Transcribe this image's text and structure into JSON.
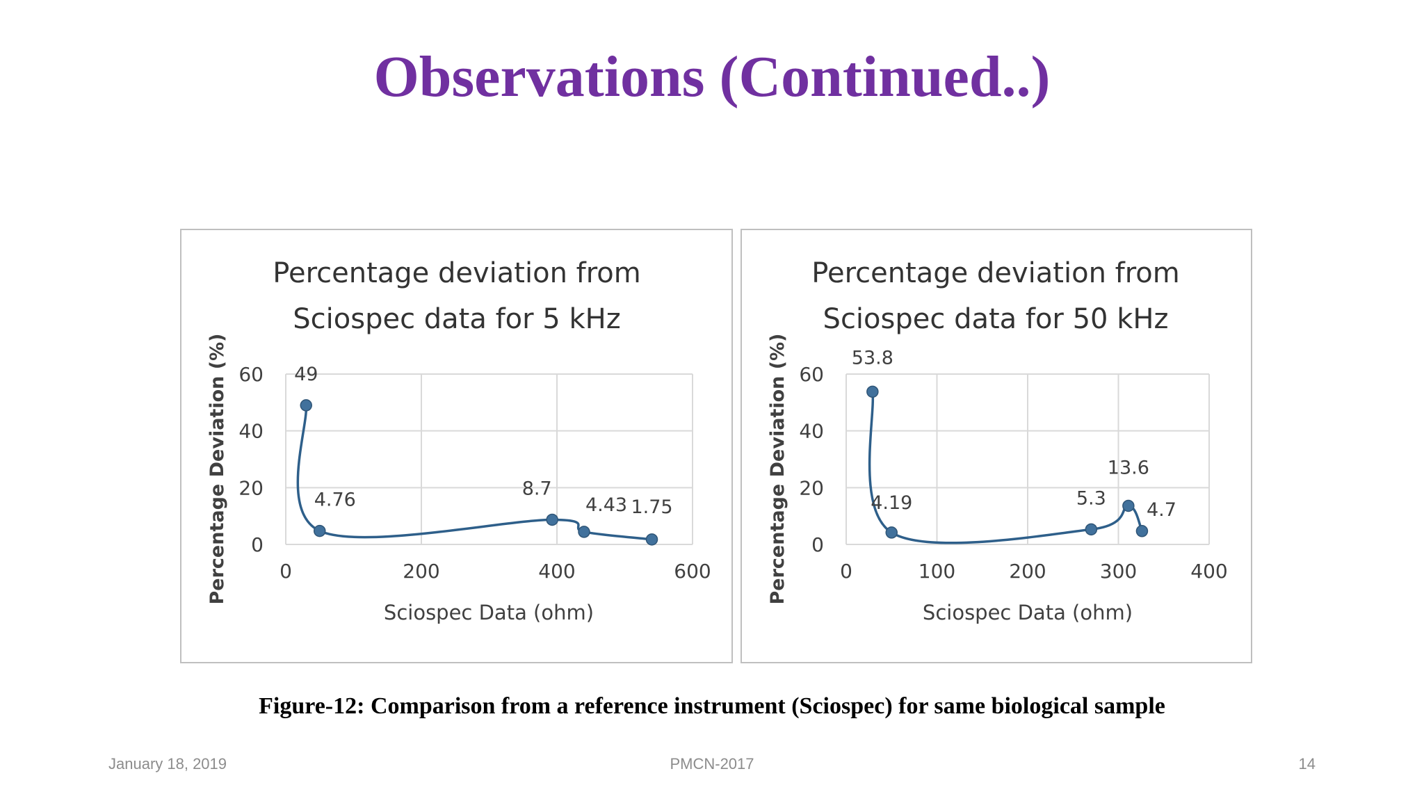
{
  "slide": {
    "title": "Observations (Continued..)",
    "caption": "Figure-12: Comparison from a reference instrument (Sciospec) for same biological sample",
    "footer_date": "January 18, 2019",
    "footer_event": "PMCN-2017",
    "footer_page": "14"
  },
  "colors": {
    "title": "#7030a0",
    "series": "#2e5f8a",
    "marker": "#41719c",
    "grid": "#d9d9d9"
  },
  "chart_data": [
    {
      "type": "scatter",
      "title_lines": [
        "Percentage deviation from",
        "Sciospec data for 5 kHz"
      ],
      "xlabel": "Sciospec Data (ohm)",
      "ylabel": "Percentage Deviation (%)",
      "xlim": [
        0,
        600
      ],
      "ylim": [
        0,
        60
      ],
      "xticks": [
        0,
        200,
        400,
        600
      ],
      "yticks": [
        0,
        20,
        40,
        60
      ],
      "grid": true,
      "smoothed_line": true,
      "points": [
        {
          "x": 30,
          "y": 49,
          "label": "49"
        },
        {
          "x": 50,
          "y": 4.76,
          "label": "4.76"
        },
        {
          "x": 393,
          "y": 8.7,
          "label": "8.7"
        },
        {
          "x": 440,
          "y": 4.43,
          "label": "4.43"
        },
        {
          "x": 540,
          "y": 1.75,
          "label": "1.75"
        }
      ]
    },
    {
      "type": "scatter",
      "title_lines": [
        "Percentage deviation from",
        "Sciospec data for 50 kHz"
      ],
      "xlabel": "Sciospec Data (ohm)",
      "ylabel": "Percentage Deviation (%)",
      "xlim": [
        0,
        400
      ],
      "ylim": [
        0,
        60
      ],
      "xticks": [
        0,
        100,
        200,
        300,
        400
      ],
      "yticks": [
        0,
        20,
        40,
        60
      ],
      "grid": true,
      "smoothed_line": true,
      "points": [
        {
          "x": 29,
          "y": 53.8,
          "label": "53.8"
        },
        {
          "x": 50,
          "y": 4.19,
          "label": "4.19"
        },
        {
          "x": 270,
          "y": 5.3,
          "label": "5.3"
        },
        {
          "x": 311,
          "y": 13.6,
          "label": "13.6"
        },
        {
          "x": 326,
          "y": 4.7,
          "label": "4.7"
        }
      ]
    }
  ]
}
